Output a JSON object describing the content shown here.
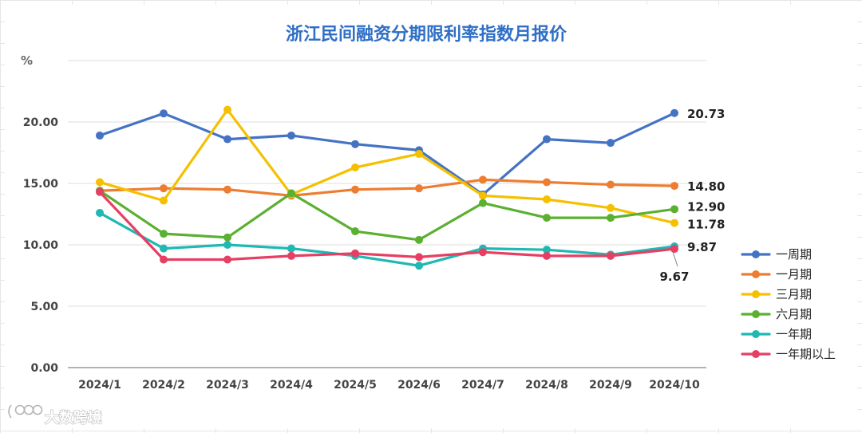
{
  "chart_data": {
    "type": "line",
    "title": "浙江民间融资分期限利率指数月报价",
    "ylabel": "%",
    "xlabel": "",
    "categories": [
      "2024/1",
      "2024/2",
      "2024/3",
      "2024/4",
      "2024/5",
      "2024/6",
      "2024/7",
      "2024/8",
      "2024/9",
      "2024/10"
    ],
    "ylim": [
      0,
      25
    ],
    "yticks": [
      "0.00",
      "5.00",
      "10.00",
      "15.00",
      "20.00"
    ],
    "grid": "horizontal",
    "legend_position": "right",
    "series": [
      {
        "name": "一周期",
        "color": "#4472c4",
        "values": [
          18.9,
          20.7,
          18.6,
          18.9,
          18.2,
          17.7,
          14.1,
          18.6,
          18.3,
          20.73
        ],
        "end_label": "20.73"
      },
      {
        "name": "一月期",
        "color": "#ed7d31",
        "values": [
          14.4,
          14.6,
          14.5,
          14.0,
          14.5,
          14.6,
          15.3,
          15.1,
          14.9,
          14.8
        ],
        "end_label": "14.80"
      },
      {
        "name": "三月期",
        "color": "#f5c000",
        "values": [
          15.1,
          13.6,
          21.0,
          14.1,
          16.3,
          17.4,
          14.0,
          13.7,
          13.0,
          11.78
        ],
        "end_label": "11.78"
      },
      {
        "name": "六月期",
        "color": "#5cb031",
        "values": [
          14.4,
          10.9,
          10.6,
          14.2,
          11.1,
          10.4,
          13.4,
          12.2,
          12.2,
          12.9
        ],
        "end_label": "12.90"
      },
      {
        "name": "一年期",
        "color": "#1fb8b3",
        "values": [
          12.6,
          9.7,
          10.0,
          9.7,
          9.1,
          8.3,
          9.7,
          9.6,
          9.2,
          9.87
        ],
        "end_label": "9.87"
      },
      {
        "name": "一年期以上",
        "color": "#e63f63",
        "values": [
          14.3,
          8.8,
          8.8,
          9.1,
          9.3,
          9.0,
          9.4,
          9.1,
          9.1,
          9.67
        ],
        "end_label": "9.67"
      }
    ]
  },
  "watermark": {
    "text": "大数跨境"
  }
}
